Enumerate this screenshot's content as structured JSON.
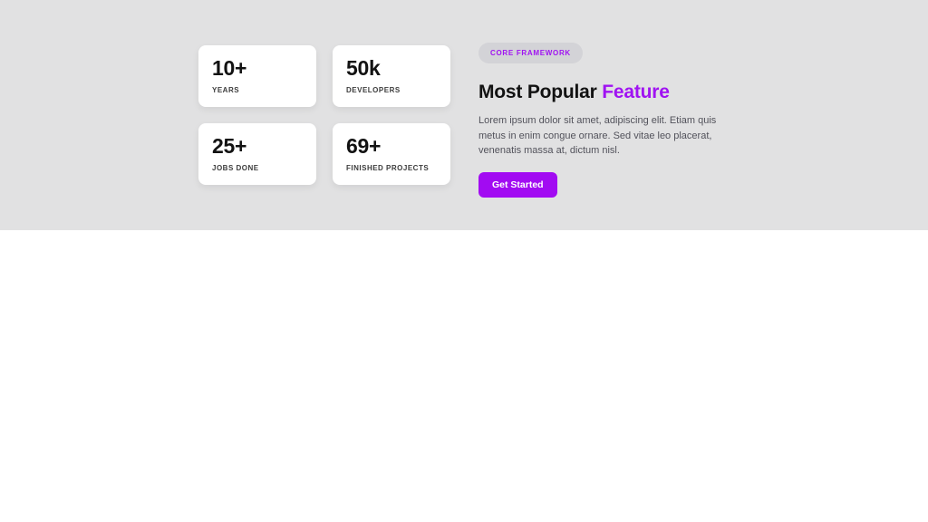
{
  "theme": {
    "section_background": "#e1e1e2",
    "accent_purple": "#a013f2",
    "button_purple": "#a20bf2",
    "badge_background": "#d3d3d7",
    "card_background": "#ffffff"
  },
  "stats": {
    "cards": [
      {
        "value": "10+",
        "label": "YEARS"
      },
      {
        "value": "50k",
        "label": "DEVELOPERS"
      },
      {
        "value": "25+",
        "label": "JOBS DONE"
      },
      {
        "value": "69+",
        "label": "FINISHED PROJECTS"
      }
    ]
  },
  "feature": {
    "badge": "CORE FRAMEWORK",
    "title_prefix": "Most Popular ",
    "title_highlight": "Feature",
    "description": "Lorem ipsum dolor sit amet, adipiscing elit. Etiam quis metus in enim congue ornare. Sed vitae leo placerat, venenatis massa at, dictum nisl.",
    "cta_label": "Get Started"
  }
}
